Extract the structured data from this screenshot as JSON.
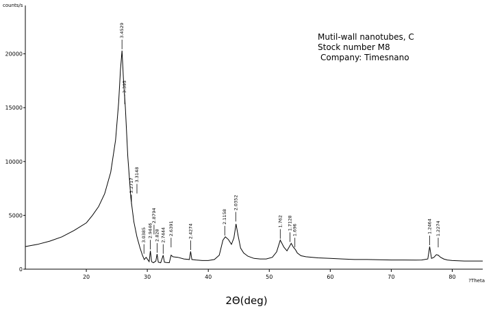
{
  "chart_data": {
    "type": "line",
    "y_unit_label": "counts/s",
    "x_unit_label": "?Theta",
    "xlabel": "2Θ(deg)",
    "xlim": [
      10,
      85
    ],
    "ylim": [
      0,
      25000
    ],
    "x_ticks": [
      20,
      30,
      40,
      50,
      60,
      70,
      80
    ],
    "y_ticks": [
      0,
      5000,
      10000,
      15000,
      20000
    ],
    "grid": false,
    "legend_position": "top-right",
    "annotation_lines": [
      "Mutil-wall nanotubes, C",
      "Stock number  M8",
      "Company: Timesnano"
    ],
    "series": [
      {
        "x": [
          10,
          12,
          14,
          16,
          18,
          20,
          21,
          22,
          23,
          24,
          24.8,
          25.3,
          25.6,
          25.85,
          26.1,
          26.4,
          26.8,
          27.3,
          27.8,
          28.3,
          28.8,
          29.2,
          29.5,
          29.8,
          30.3,
          30.5,
          30.7,
          31.0,
          31.4,
          31.6,
          31.8,
          32.2,
          32.6,
          32.8,
          33.1,
          33.6,
          33.9,
          34.2,
          35,
          36,
          36.9,
          37.1,
          37.3,
          38,
          39,
          40,
          41,
          41.8,
          42.4,
          42.8,
          43.3,
          43.8,
          44.2,
          44.55,
          44.9,
          45.3,
          45.8,
          46.5,
          47.5,
          48.5,
          49.5,
          50.5,
          51.2,
          51.8,
          52.4,
          52.9,
          53.3,
          53.6,
          53.95,
          54.3,
          54.6,
          55.2,
          56,
          58,
          60,
          62,
          64,
          66,
          68,
          70,
          72,
          74,
          75,
          76,
          76.3,
          76.6,
          77,
          77.4,
          77.7,
          78.1,
          78.6,
          79.2,
          80,
          81,
          82,
          83,
          84,
          85
        ],
        "y": [
          2100,
          2300,
          2600,
          3000,
          3600,
          4300,
          5000,
          5800,
          7000,
          9000,
          12000,
          15500,
          18500,
          20300,
          17500,
          15000,
          10500,
          6600,
          4400,
          3000,
          2000,
          1300,
          900,
          1100,
          700,
          1700,
          700,
          600,
          750,
          1400,
          650,
          600,
          1300,
          650,
          620,
          600,
          1300,
          1150,
          1100,
          950,
          900,
          1650,
          900,
          850,
          800,
          800,
          900,
          1300,
          2700,
          3000,
          2750,
          2300,
          2900,
          4200,
          3100,
          1950,
          1500,
          1200,
          1000,
          950,
          950,
          1100,
          1600,
          2700,
          2050,
          1700,
          2100,
          2400,
          2050,
          1800,
          1500,
          1250,
          1150,
          1050,
          1000,
          950,
          900,
          900,
          870,
          850,
          850,
          840,
          850,
          950,
          2100,
          1000,
          1100,
          1350,
          1300,
          1100,
          950,
          850,
          800,
          780,
          760,
          760,
          760,
          760
        ]
      }
    ],
    "peak_labels": [
      {
        "x": 25.85,
        "y": 20300,
        "label": "3.4529"
      },
      {
        "x": 26.3,
        "y": 15200,
        "label": "3.395"
      },
      {
        "x": 27.4,
        "y": 5900,
        "label": "3.2717"
      },
      {
        "x": 28.3,
        "y": 6900,
        "label": "3.3148"
      },
      {
        "x": 29.45,
        "y": 1300,
        "label": "3.0385"
      },
      {
        "x": 30.5,
        "y": 1700,
        "label": "2.9446"
      },
      {
        "x": 31.1,
        "y": 3100,
        "label": "2.8794"
      },
      {
        "x": 31.6,
        "y": 1400,
        "label": "2.828"
      },
      {
        "x": 32.6,
        "y": 1300,
        "label": "2.7444"
      },
      {
        "x": 33.9,
        "y": 1900,
        "label": "2.6391"
      },
      {
        "x": 37.1,
        "y": 1650,
        "label": "2.4274"
      },
      {
        "x": 42.7,
        "y": 3000,
        "label": "2.1158"
      },
      {
        "x": 44.5,
        "y": 4300,
        "label": "2.0352"
      },
      {
        "x": 51.8,
        "y": 2700,
        "label": "1.762"
      },
      {
        "x": 53.4,
        "y": 2400,
        "label": "1.7128"
      },
      {
        "x": 54.2,
        "y": 1900,
        "label": "1.696"
      },
      {
        "x": 76.3,
        "y": 2100,
        "label": "1.2464"
      },
      {
        "x": 77.7,
        "y": 1900,
        "label": "1.2274"
      }
    ]
  }
}
